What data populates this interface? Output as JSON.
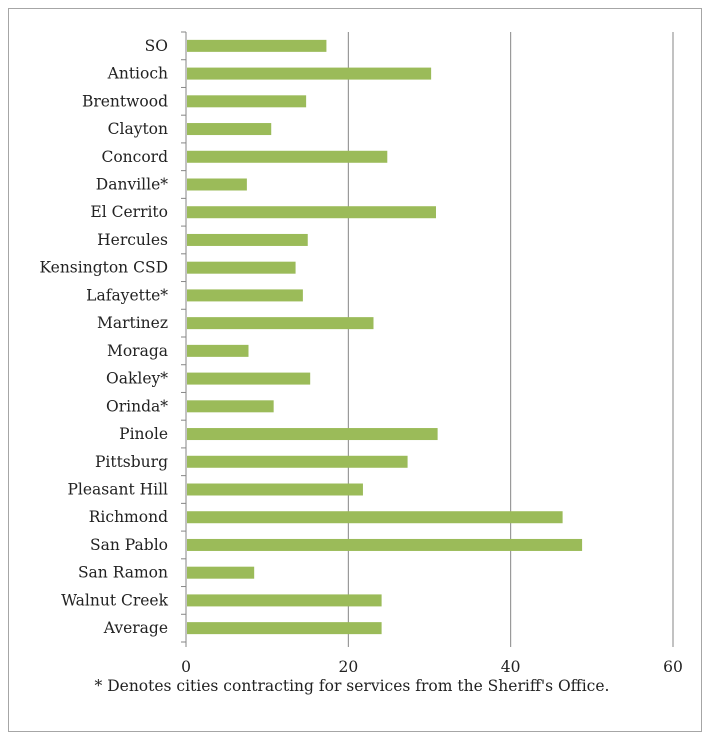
{
  "chart_data": {
    "type": "bar",
    "orientation": "horizontal",
    "categories": [
      "SO",
      "Antioch",
      "Brentwood",
      "Clayton",
      "Concord",
      "Danville*",
      "El Cerrito",
      "Hercules",
      "Kensington CSD",
      "Lafayette*",
      "Martinez",
      "Moraga",
      "Oakley*",
      "Orinda*",
      "Pinole",
      "Pittsburg",
      "Pleasant Hill",
      "Richmond",
      "San Pablo",
      "San Ramon",
      "Walnut Creek",
      "Average"
    ],
    "values": [
      17.3,
      30.2,
      14.8,
      10.5,
      24.8,
      7.5,
      30.8,
      15.0,
      13.5,
      14.4,
      23.1,
      7.7,
      15.3,
      10.8,
      31.0,
      27.3,
      21.8,
      46.4,
      48.8,
      8.4,
      24.1,
      24.1
    ],
    "xlim": [
      0,
      60
    ],
    "xticks": [
      0,
      20,
      40,
      60
    ],
    "xtick_labels": [
      "0",
      "20",
      "40",
      "60"
    ],
    "grid": true,
    "bar_color": "#9bbb59",
    "grid_color": "#868686"
  },
  "footnote": "* Denotes cities contracting for services from the Sheriff's Office."
}
